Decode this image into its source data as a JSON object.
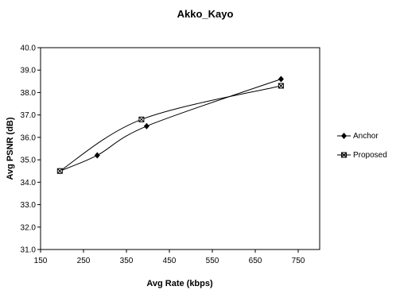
{
  "chart_data": {
    "type": "line",
    "title": "Akko_Kayo",
    "xlabel": "Avg Rate (kbps)",
    "ylabel": "Avg PSNR (dB)",
    "xlim": [
      150,
      800
    ],
    "ylim": [
      31.0,
      40.0
    ],
    "x_ticks": [
      150,
      250,
      350,
      450,
      550,
      650,
      750
    ],
    "x_tick_labels": [
      "150",
      "250",
      "350",
      "450",
      "550",
      "650",
      "750"
    ],
    "y_ticks": [
      31,
      32,
      33,
      34,
      35,
      36,
      37,
      38,
      39,
      40
    ],
    "y_tick_labels": [
      "31.0",
      "32.0",
      "33.0",
      "34.0",
      "35.0",
      "36.0",
      "37.0",
      "38.0",
      "39.0",
      "40.0"
    ],
    "grid": false,
    "legend_position": "right",
    "series": [
      {
        "name": "Anchor",
        "marker": "diamond",
        "x": [
          195,
          282,
          397,
          710
        ],
        "y": [
          34.5,
          35.2,
          36.5,
          38.6
        ]
      },
      {
        "name": "Proposed",
        "marker": "square-x",
        "x": [
          195,
          385,
          710
        ],
        "y": [
          34.5,
          36.8,
          38.3
        ]
      }
    ]
  }
}
